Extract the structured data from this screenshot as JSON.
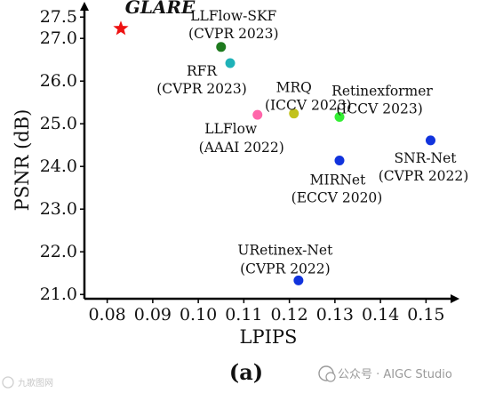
{
  "chart_data": {
    "type": "scatter",
    "xlabel": "LPIPS",
    "ylabel": "PSNR (dB)",
    "xlim": [
      0.075,
      0.155
    ],
    "ylim": [
      20.9,
      27.65
    ],
    "x_ticks": [
      0.08,
      0.09,
      0.1,
      0.11,
      0.12,
      0.13,
      0.14,
      0.15
    ],
    "x_tick_labels": [
      "0.08",
      "0.09",
      "0.10",
      "0.11",
      "0.12",
      "0.13",
      "0.14",
      "0.15"
    ],
    "y_ticks": [
      21.0,
      22.0,
      23.0,
      24.0,
      25.0,
      26.0,
      27.0,
      27.5
    ],
    "y_tick_labels": [
      "21.0",
      "22.0",
      "23.0",
      "24.0",
      "25.0",
      "26.0",
      "27.0",
      "27.5"
    ],
    "points": [
      {
        "name": "GLARE",
        "venue": "",
        "x": 0.083,
        "y": 27.23,
        "color": "#ee1111",
        "marker": "star",
        "label_pos": "above"
      },
      {
        "name": "LLFlow-SKF",
        "venue": "(CVPR 2023)",
        "x": 0.105,
        "y": 26.8,
        "color": "#1e7a1e",
        "marker": "circle",
        "label_pos": "above"
      },
      {
        "name": "RFR",
        "venue": "(CVPR 2023)",
        "x": 0.107,
        "y": 26.42,
        "color": "#1fb2b8",
        "marker": "circle",
        "label_pos": "below-left"
      },
      {
        "name": "LLFlow",
        "venue": "(AAAI 2022)",
        "x": 0.113,
        "y": 25.21,
        "color": "#ff66aa",
        "marker": "circle",
        "label_pos": "below"
      },
      {
        "name": "MRQ",
        "venue": "(ICCV 2023)",
        "x": 0.121,
        "y": 25.24,
        "color": "#c2c21c",
        "marker": "circle",
        "label_pos": "above"
      },
      {
        "name": "Retinexformer",
        "venue": "(ICCV 2023)",
        "x": 0.131,
        "y": 25.16,
        "color": "#33ee33",
        "marker": "circle",
        "label_pos": "above"
      },
      {
        "name": "MIRNet",
        "venue": "(ECCV 2020)",
        "x": 0.131,
        "y": 24.14,
        "color": "#1133dd",
        "marker": "circle",
        "label_pos": "below"
      },
      {
        "name": "SNR-Net",
        "venue": "(CVPR 2022)",
        "x": 0.151,
        "y": 24.61,
        "color": "#1133dd",
        "marker": "circle",
        "label_pos": "below"
      },
      {
        "name": "URetinex-Net",
        "venue": "(CVPR 2022)",
        "x": 0.122,
        "y": 21.33,
        "color": "#1133dd",
        "marker": "circle",
        "label_pos": "above"
      }
    ]
  },
  "caption": "(a)",
  "watermark": "公众号 · AIGC Studio",
  "watermark_left": "九歌图网"
}
